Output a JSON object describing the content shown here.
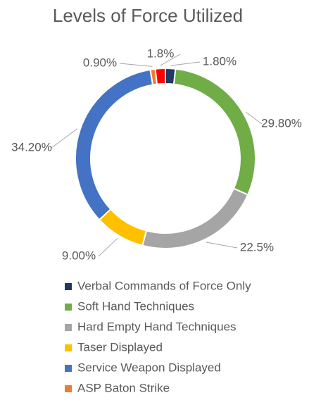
{
  "chart_data": {
    "type": "donut",
    "title": "Levels of Force Utilized",
    "categories": [
      "Verbal Commands of Force Only",
      "Soft Hand Techniques",
      "Hard Empty Hand Techniques",
      "Taser Displayed",
      "Service Weapon Displayed",
      "ASP Baton Strike",
      null
    ],
    "values": [
      1.8,
      29.8,
      22.5,
      9.0,
      34.2,
      0.9,
      1.8
    ],
    "value_labels": [
      "1.80%",
      "29.80%",
      "22.5%",
      "9.00%",
      "34.20%",
      "0.90%",
      "1.8%"
    ],
    "colors": [
      "#1f3864",
      "#70ad47",
      "#a5a5a5",
      "#ffc000",
      "#4472c4",
      "#ed7d31",
      "#ff0000"
    ],
    "legend": "bottom"
  }
}
